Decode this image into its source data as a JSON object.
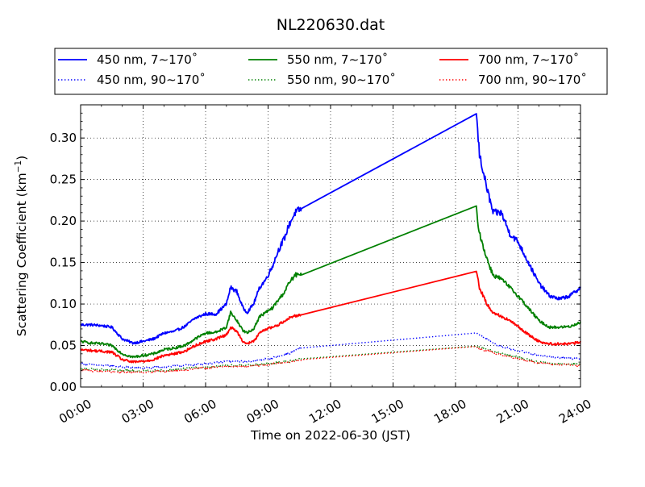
{
  "chart_data": {
    "type": "line",
    "title": "NL220630.dat",
    "xlabel": "Time on 2022-06-30 (JST)",
    "ylabel_main": "Scattering Coefficient (km",
    "ylabel_sup": "−1",
    "ylabel_close": ")",
    "x_unit": "hours",
    "xlim": [
      0,
      24
    ],
    "ylim": [
      0,
      0.34
    ],
    "x_ticks": [
      0,
      3,
      6,
      9,
      12,
      15,
      18,
      21,
      24
    ],
    "x_tick_labels": [
      "00:00",
      "03:00",
      "06:00",
      "09:00",
      "12:00",
      "15:00",
      "18:00",
      "21:00",
      "24:00"
    ],
    "y_ticks": [
      0,
      0.05,
      0.1,
      0.15,
      0.2,
      0.25,
      0.3
    ],
    "y_tick_labels": [
      "0.00",
      "0.05",
      "0.10",
      "0.15",
      "0.20",
      "0.25",
      "0.30"
    ],
    "grid": true,
    "legend_position": "top",
    "series": [
      {
        "name": "450 nm, 7∼170˚",
        "color": "#0000ff",
        "style": "solid",
        "x": [
          0,
          0.5,
          1,
          1.5,
          2,
          2.5,
          3,
          3.5,
          4,
          4.5,
          5,
          5.5,
          6,
          6.5,
          7,
          7.2,
          7.5,
          7.8,
          8,
          8.3,
          8.6,
          8.9,
          9.2,
          9.5,
          9.8,
          10,
          10.3,
          10.6,
          19.0,
          19.15,
          19.5,
          19.8,
          20.2,
          20.6,
          21.0,
          21.5,
          22,
          22.5,
          23,
          23.5,
          24
        ],
        "y": [
          0.075,
          0.075,
          0.074,
          0.072,
          0.058,
          0.053,
          0.055,
          0.058,
          0.065,
          0.067,
          0.073,
          0.083,
          0.088,
          0.088,
          0.1,
          0.12,
          0.115,
          0.095,
          0.09,
          0.1,
          0.12,
          0.13,
          0.145,
          0.165,
          0.18,
          0.195,
          0.21,
          0.215,
          0.328,
          0.28,
          0.24,
          0.21,
          0.21,
          0.185,
          0.175,
          0.15,
          0.125,
          0.11,
          0.106,
          0.11,
          0.12
        ]
      },
      {
        "name": "450 nm, 90∼170˚",
        "color": "#0000ff",
        "style": "dotted",
        "x": [
          0,
          1,
          2,
          3,
          4,
          5,
          6,
          7,
          8,
          9,
          10,
          10.6,
          19.0,
          19.2,
          20,
          21,
          22,
          23,
          24
        ],
        "y": [
          0.028,
          0.026,
          0.024,
          0.023,
          0.024,
          0.026,
          0.028,
          0.031,
          0.031,
          0.034,
          0.04,
          0.047,
          0.065,
          0.062,
          0.05,
          0.044,
          0.038,
          0.035,
          0.034
        ]
      },
      {
        "name": "550 nm, 7∼170˚",
        "color": "#008000",
        "style": "solid",
        "x": [
          0,
          0.5,
          1,
          1.5,
          2,
          2.5,
          3,
          3.5,
          4,
          4.5,
          5,
          5.5,
          6,
          6.5,
          7,
          7.2,
          7.5,
          7.8,
          8,
          8.3,
          8.6,
          8.9,
          9.2,
          9.5,
          9.8,
          10,
          10.3,
          10.6,
          19.0,
          19.15,
          19.5,
          19.8,
          20.2,
          20.6,
          21.0,
          21.5,
          22,
          22.5,
          23,
          23.5,
          24
        ],
        "y": [
          0.055,
          0.053,
          0.052,
          0.05,
          0.04,
          0.036,
          0.038,
          0.04,
          0.045,
          0.047,
          0.05,
          0.058,
          0.065,
          0.066,
          0.072,
          0.09,
          0.08,
          0.068,
          0.065,
          0.07,
          0.085,
          0.09,
          0.095,
          0.105,
          0.115,
          0.125,
          0.135,
          0.135,
          0.214,
          0.185,
          0.155,
          0.135,
          0.13,
          0.12,
          0.11,
          0.095,
          0.08,
          0.072,
          0.072,
          0.073,
          0.078
        ]
      },
      {
        "name": "550 nm, 90∼170˚",
        "color": "#008000",
        "style": "dotted",
        "x": [
          0,
          1,
          2,
          3,
          4,
          5,
          6,
          7,
          8,
          9,
          10,
          10.6,
          19.0,
          19.2,
          20,
          21,
          22,
          23,
          24
        ],
        "y": [
          0.022,
          0.021,
          0.02,
          0.019,
          0.02,
          0.022,
          0.024,
          0.026,
          0.026,
          0.028,
          0.031,
          0.034,
          0.05,
          0.047,
          0.042,
          0.036,
          0.03,
          0.028,
          0.027
        ]
      },
      {
        "name": "700 nm, 7∼170˚",
        "color": "#ff0000",
        "style": "solid",
        "x": [
          0,
          0.5,
          1,
          1.5,
          2,
          2.5,
          3,
          3.5,
          4,
          4.5,
          5,
          5.5,
          6,
          6.5,
          7,
          7.2,
          7.5,
          7.8,
          8,
          8.3,
          8.6,
          8.9,
          9.2,
          9.5,
          9.8,
          10,
          10.3,
          10.6,
          19.0,
          19.15,
          19.5,
          19.8,
          20.2,
          20.6,
          21.0,
          21.5,
          22,
          22.5,
          23,
          23.5,
          24
        ],
        "y": [
          0.045,
          0.044,
          0.043,
          0.042,
          0.033,
          0.03,
          0.031,
          0.033,
          0.038,
          0.04,
          0.043,
          0.05,
          0.055,
          0.058,
          0.063,
          0.072,
          0.067,
          0.055,
          0.052,
          0.055,
          0.065,
          0.07,
          0.072,
          0.075,
          0.08,
          0.083,
          0.086,
          0.087,
          0.14,
          0.12,
          0.1,
          0.09,
          0.085,
          0.08,
          0.073,
          0.063,
          0.055,
          0.052,
          0.052,
          0.052,
          0.054
        ]
      },
      {
        "name": "700 nm, 90∼170˚",
        "color": "#ff0000",
        "style": "dotted",
        "x": [
          0,
          1,
          2,
          3,
          4,
          5,
          6,
          7,
          8,
          9,
          10,
          10.6,
          19.0,
          19.2,
          20,
          21,
          22,
          23,
          24
        ],
        "y": [
          0.02,
          0.019,
          0.018,
          0.018,
          0.019,
          0.021,
          0.023,
          0.025,
          0.025,
          0.027,
          0.03,
          0.033,
          0.048,
          0.046,
          0.04,
          0.034,
          0.029,
          0.027,
          0.026
        ]
      }
    ]
  }
}
